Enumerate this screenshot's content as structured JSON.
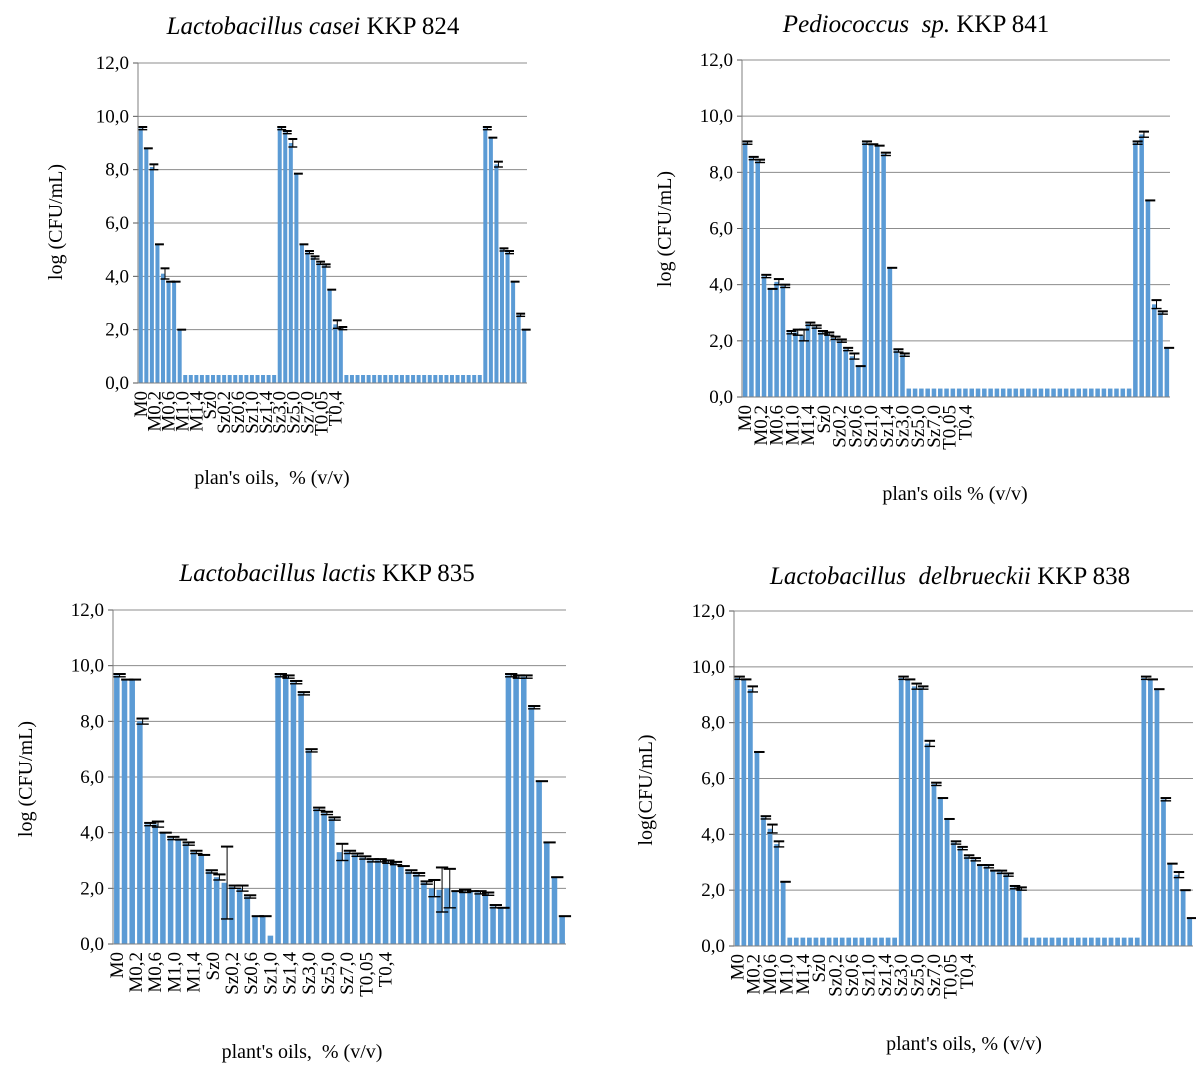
{
  "chart_data": [
    {
      "type": "bar",
      "title_italic": "Lactobacillus casei",
      "title_rest": " KKP 824",
      "xlabel": "plan's oils,  % (v/v)",
      "ylabel": "log (CFU/mL)",
      "ylim": [
        0,
        12
      ],
      "yticks": [
        "0,0",
        "2,0",
        "4,0",
        "6,0",
        "8,0",
        "10,0",
        "12,0"
      ],
      "grid": true,
      "bar_color": "#5b9bd5",
      "tick_labels": [
        "M0",
        "M0,2",
        "M0,6",
        "M1,0",
        "M1,4",
        "Sz0",
        "Sz0,2",
        "Sz0,6",
        "Sz1,0",
        "Sz1,4",
        "Sz3,0",
        "Sz5,0",
        "Sz7,0",
        "T0,05",
        "T0,4"
      ],
      "tick_positions": [
        0,
        2.5,
        5,
        7.5,
        10,
        12.5,
        15,
        17.5,
        20,
        22.5,
        25,
        27.5,
        30,
        32.5,
        35
      ],
      "values": [
        9.55,
        8.8,
        8.1,
        5.2,
        4.1,
        3.8,
        3.8,
        2.0,
        0,
        0,
        0,
        0,
        0,
        0,
        0,
        0,
        0,
        0,
        0,
        0,
        0,
        0,
        0,
        0,
        0,
        9.55,
        9.4,
        9.0,
        7.85,
        5.2,
        4.9,
        4.7,
        4.5,
        4.4,
        3.5,
        2.2,
        2.05,
        0,
        0,
        0,
        0,
        0,
        0,
        0,
        0,
        0,
        0,
        0,
        0,
        0,
        0,
        0,
        0,
        0,
        0,
        0,
        0,
        0,
        0,
        0,
        0,
        0,
        9.55,
        9.2,
        8.2,
        5.0,
        4.9,
        3.8,
        2.55,
        2.0
      ],
      "errors": [
        0.05,
        0,
        0.1,
        0,
        0.2,
        0,
        0,
        0,
        0,
        0,
        0,
        0,
        0,
        0,
        0,
        0,
        0,
        0,
        0,
        0,
        0,
        0,
        0,
        0,
        0,
        0.05,
        0.05,
        0.15,
        0,
        0,
        0.05,
        0.05,
        0.05,
        0.05,
        0,
        0.15,
        0.05,
        0,
        0,
        0,
        0,
        0,
        0,
        0,
        0,
        0,
        0,
        0,
        0,
        0,
        0,
        0,
        0,
        0,
        0,
        0,
        0,
        0,
        0,
        0,
        0,
        0,
        0.05,
        0,
        0.1,
        0.05,
        0.05,
        0,
        0.05,
        0
      ]
    },
    {
      "type": "bar",
      "title_italic": "Pediococcus  sp.",
      "title_rest": " KKP 841",
      "xlabel": "plan's oils % (v/v)",
      "ylabel": "log (CFU/mL)",
      "ylim": [
        0,
        12
      ],
      "yticks": [
        "0,0",
        "2,0",
        "4,0",
        "6,0",
        "8,0",
        "10,0",
        "12,0"
      ],
      "grid": true,
      "bar_color": "#5b9bd5",
      "tick_labels": [
        "M0",
        "M0,2",
        "M0,6",
        "M1,0",
        "M1,4",
        "Sz0",
        "Sz0,2",
        "Sz0,6",
        "Sz1,0",
        "Sz1,4",
        "Sz3,0",
        "Sz5,0",
        "Sz7,0",
        "T0,05",
        "T0,4"
      ],
      "tick_positions": [
        0,
        2.5,
        5,
        7.5,
        10,
        12.5,
        15,
        17.5,
        20,
        22.5,
        25,
        27.5,
        30,
        32.5,
        35
      ],
      "values": [
        9.05,
        8.5,
        8.4,
        4.3,
        3.85,
        4.1,
        3.95,
        2.3,
        2.3,
        2.2,
        2.6,
        2.5,
        2.3,
        2.25,
        2.1,
        2.0,
        1.7,
        1.45,
        1.1,
        9.05,
        9.0,
        8.95,
        8.65,
        4.6,
        1.65,
        1.5,
        0,
        0,
        0,
        0,
        0,
        0,
        0,
        0,
        0,
        0,
        0,
        0,
        0,
        0,
        0,
        0,
        0,
        0,
        0,
        0,
        0,
        0,
        0,
        0,
        0,
        0,
        0,
        0,
        0,
        0,
        0,
        0,
        0,
        0,
        0,
        0,
        9.05,
        9.35,
        7.0,
        3.3,
        3.0,
        1.75
      ],
      "errors": [
        0.05,
        0.05,
        0.05,
        0.05,
        0,
        0.1,
        0.05,
        0.05,
        0.1,
        0.2,
        0.05,
        0.05,
        0.05,
        0.05,
        0.05,
        0.05,
        0.05,
        0.1,
        0,
        0.05,
        0,
        0,
        0.05,
        0,
        0.05,
        0.05,
        0,
        0,
        0,
        0,
        0,
        0,
        0,
        0,
        0,
        0,
        0,
        0,
        0,
        0,
        0,
        0,
        0,
        0,
        0,
        0,
        0,
        0,
        0,
        0,
        0,
        0,
        0,
        0,
        0,
        0,
        0,
        0,
        0,
        0,
        0,
        0,
        0.05,
        0.1,
        0,
        0.15,
        0.05,
        0
      ]
    },
    {
      "type": "bar",
      "title_italic": "Lactobacillus lactis",
      "title_rest": " KKP 835",
      "xlabel": "plant's oils,  % (v/v)",
      "ylabel": "log (CFU/mL)",
      "ylim": [
        0,
        12
      ],
      "yticks": [
        "0,0",
        "2,0",
        "4,0",
        "6,0",
        "8,0",
        "10,0",
        "12,0"
      ],
      "grid": true,
      "bar_color": "#5b9bd5",
      "tick_labels": [
        "M0",
        "M0,2",
        "M0,6",
        "M1,0",
        "M1,4",
        "Sz0",
        "Sz0,2",
        "Sz0,6",
        "Sz1,0",
        "Sz1,4",
        "Sz3,0",
        "Sz5,0",
        "Sz7,0",
        "T0,05",
        "T0,4"
      ],
      "tick_positions": [
        0,
        2.5,
        5,
        7.5,
        10,
        12.5,
        15,
        17.5,
        20,
        22.5,
        25,
        27.5,
        30,
        32.5,
        35
      ],
      "values": [
        9.65,
        9.5,
        9.5,
        8.0,
        4.3,
        4.3,
        4.0,
        3.8,
        3.75,
        3.6,
        3.3,
        3.2,
        2.6,
        2.4,
        2.2,
        2.05,
        2.0,
        1.7,
        1.0,
        1.0,
        0,
        9.65,
        9.6,
        9.4,
        9.0,
        6.95,
        4.85,
        4.7,
        4.5,
        3.3,
        3.3,
        3.2,
        3.1,
        3.0,
        3.0,
        2.95,
        2.9,
        2.8,
        2.6,
        2.5,
        2.2,
        2.0,
        1.95,
        2.0,
        1.9,
        1.9,
        1.9,
        1.85,
        1.8,
        1.35,
        1.3,
        9.65,
        9.6,
        9.6,
        8.5,
        5.85,
        3.65,
        2.4,
        1.0
      ],
      "errors": [
        0.05,
        0,
        0,
        0.1,
        0.05,
        0.1,
        0,
        0.05,
        0,
        0.05,
        0.05,
        0,
        0.05,
        0.1,
        1.3,
        0.05,
        0.1,
        0.05,
        0,
        0,
        0,
        0.05,
        0.05,
        0.05,
        0.05,
        0.05,
        0.05,
        0.05,
        0.05,
        0.3,
        0.05,
        0.05,
        0.05,
        0.05,
        0.05,
        0.05,
        0.05,
        0,
        0.05,
        0.05,
        0.05,
        0.3,
        0.8,
        0.7,
        0,
        0.05,
        0,
        0.05,
        0.05,
        0.05,
        0,
        0.05,
        0.05,
        0.05,
        0.05,
        0,
        0,
        0,
        0
      ]
    },
    {
      "type": "bar",
      "title_italic": "Lactobacillus  delbrueckii",
      "title_rest": " KKP 838",
      "xlabel": "plant's oils, % (v/v)",
      "ylabel": "log(CFU/mL)",
      "ylim": [
        0,
        12
      ],
      "yticks": [
        "0,0",
        "2,0",
        "4,0",
        "6,0",
        "8,0",
        "10,0",
        "12,0"
      ],
      "grid": true,
      "bar_color": "#5b9bd5",
      "tick_labels": [
        "M0",
        "M0,2",
        "M0,6",
        "M1,0",
        "M1,4",
        "Sz0",
        "Sz0,2",
        "Sz0,6",
        "Sz1,0",
        "Sz1,4",
        "Sz3,0",
        "Sz5,0",
        "Sz7,0",
        "T0,05",
        "T0,4"
      ],
      "tick_positions": [
        0,
        2.5,
        5,
        7.5,
        10,
        12.5,
        15,
        17.5,
        20,
        22.5,
        25,
        27.5,
        30,
        32.5,
        35
      ],
      "values": [
        9.6,
        9.55,
        9.2,
        6.95,
        4.6,
        4.2,
        3.65,
        2.3,
        0,
        0,
        0,
        0,
        0,
        0,
        0,
        0,
        0,
        0,
        0,
        0,
        0,
        0,
        0,
        0,
        0,
        9.6,
        9.55,
        9.3,
        9.25,
        7.25,
        5.8,
        5.3,
        4.55,
        3.7,
        3.5,
        3.2,
        3.1,
        2.9,
        2.85,
        2.7,
        2.65,
        2.55,
        2.1,
        2.05,
        0,
        0,
        0,
        0,
        0,
        0,
        0,
        0,
        0,
        0,
        0,
        0,
        0,
        0,
        0,
        0,
        0,
        0,
        9.6,
        9.55,
        9.2,
        5.25,
        2.95,
        2.55,
        2.0,
        1.0
      ],
      "errors": [
        0.05,
        0,
        0.1,
        0,
        0.05,
        0.15,
        0.1,
        0,
        0,
        0,
        0,
        0,
        0,
        0,
        0,
        0,
        0,
        0,
        0,
        0,
        0,
        0,
        0,
        0,
        0,
        0.05,
        0,
        0.1,
        0.05,
        0.1,
        0.05,
        0,
        0,
        0.05,
        0.05,
        0.05,
        0.05,
        0,
        0.05,
        0,
        0.05,
        0.05,
        0.05,
        0.05,
        0,
        0,
        0,
        0,
        0,
        0,
        0,
        0,
        0,
        0,
        0,
        0,
        0,
        0,
        0,
        0,
        0,
        0,
        0.05,
        0,
        0,
        0.05,
        0,
        0.1,
        0,
        0
      ]
    }
  ]
}
